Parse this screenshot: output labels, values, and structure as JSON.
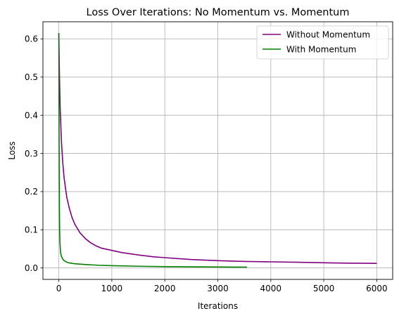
{
  "chart_data": {
    "type": "line",
    "title": "Loss Over Iterations: No Momentum vs. Momentum",
    "xlabel": "Iterations",
    "ylabel": "Loss",
    "xlim": [
      -300,
      6300
    ],
    "ylim": [
      -0.03,
      0.645
    ],
    "xticks": [
      0,
      1000,
      2000,
      3000,
      4000,
      5000,
      6000
    ],
    "yticks": [
      0.0,
      0.1,
      0.2,
      0.3,
      0.4,
      0.5,
      0.6
    ],
    "xtick_labels": [
      "0",
      "1000",
      "2000",
      "3000",
      "4000",
      "5000",
      "6000"
    ],
    "ytick_labels": [
      "0.0",
      "0.1",
      "0.2",
      "0.3",
      "0.4",
      "0.5",
      "0.6"
    ],
    "grid": true,
    "legend_position": "top-right",
    "series": [
      {
        "name": "Without Momentum",
        "color": "#800080",
        "x": [
          0,
          10,
          25,
          50,
          75,
          100,
          150,
          200,
          250,
          300,
          400,
          500,
          600,
          700,
          800,
          1000,
          1200,
          1500,
          1800,
          2000,
          2500,
          3000,
          3500,
          4000,
          4500,
          5000,
          5500,
          6000
        ],
        "y": [
          0.615,
          0.52,
          0.42,
          0.33,
          0.275,
          0.235,
          0.185,
          0.155,
          0.132,
          0.115,
          0.092,
          0.077,
          0.066,
          0.058,
          0.052,
          0.046,
          0.04,
          0.034,
          0.029,
          0.027,
          0.022,
          0.019,
          0.017,
          0.016,
          0.015,
          0.0135,
          0.0125,
          0.012
        ]
      },
      {
        "name": "With Momentum",
        "color": "#008000",
        "x": [
          0,
          3,
          6,
          10,
          15,
          20,
          30,
          40,
          50,
          75,
          100,
          150,
          200,
          300,
          500,
          750,
          1000,
          1500,
          2000,
          2500,
          3000,
          3550
        ],
        "y": [
          0.615,
          0.45,
          0.3,
          0.18,
          0.1,
          0.07,
          0.045,
          0.035,
          0.03,
          0.023,
          0.019,
          0.015,
          0.013,
          0.011,
          0.009,
          0.007,
          0.006,
          0.0045,
          0.0035,
          0.003,
          0.0025,
          0.002
        ]
      }
    ]
  }
}
